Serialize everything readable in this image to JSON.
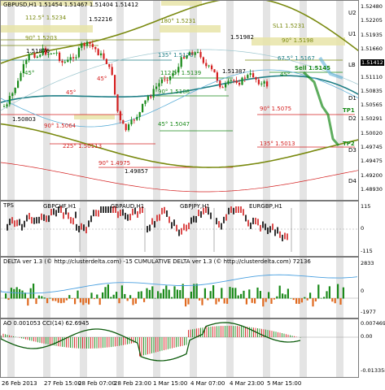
{
  "main": {
    "title": "GBPUSD,H1  1.51454 1.51467 1.51404 1.51412",
    "price_axis": [
      "1.52480",
      "1.52205",
      "1.51935",
      "1.51660",
      "1.51412",
      "1.51110",
      "1.50835",
      "1.50565",
      "1.50291",
      "1.50020",
      "1.49745",
      "1.49475",
      "1.49200",
      "1.48930"
    ],
    "current_price": "1.51412",
    "level_tags": [
      "U2",
      "U1",
      "LB",
      "D1",
      "D2",
      "D3",
      "D4"
    ],
    "annotations": {
      "a1": "112.5° 1.5234",
      "a2": "1.52216",
      "a3": "180° 1.5231",
      "a4": "90° 1.5203",
      "a5": "1.51876",
      "a6": "135° 1.5170",
      "a7": "45°",
      "a8": "45°",
      "a9": "112.5° 1.5139",
      "a10": "90° 1.5108",
      "a11": "1.50803",
      "a12": "90° 1.5064",
      "a13": "45° 1.5047",
      "a14": "225° 1.50113",
      "a15": "90° 1.4975",
      "a16": "1.49857",
      "a17": "1.51982",
      "a18": "SL1 1.5231",
      "a19": "90° 1.5198",
      "a20": "67.5° 1.5167",
      "a21": "Sell 1.5145",
      "a22": "1.51387",
      "a23": "45°",
      "a24": "90° 1.5075",
      "a25": "135° 1.5013",
      "a26": "TP1",
      "a27": "TP2"
    }
  },
  "tps": {
    "title": "TPS",
    "pairs": [
      "GBPCHF,H1",
      "GBPAUD,H1",
      "GBPJPY,H1",
      "EURGBP,H1"
    ],
    "axis": [
      "115",
      "0",
      "-115"
    ]
  },
  "delta": {
    "title": "DELTA ver 1.3 (© http://clusterdelta.com) -15  CUMULATIVE DELTA ver 1.3 (© http://clusterdelta.com) 72136",
    "axis": [
      "2833",
      "0",
      "-1977"
    ]
  },
  "ao": {
    "title": "AO 0.001053  CCI(14) 62.6945",
    "axis": [
      "0.007469",
      "0.00",
      "-0.013358"
    ]
  },
  "time_axis": [
    "26 Feb 2013",
    "27 Feb 15:00",
    "28 Feb 07:00",
    "28 Feb 23:00",
    "1 Mar 15:00",
    "4 Mar 07:00",
    "4 Mar 23:00",
    "5 Mar 15:00"
  ],
  "colors": {
    "bull": "#1a8a1a",
    "bear": "#d42020",
    "teal": "#1f7f86",
    "olive": "#7a8a10",
    "zone": "#e8e4a8",
    "grid_band": "#e4e4e4"
  }
}
